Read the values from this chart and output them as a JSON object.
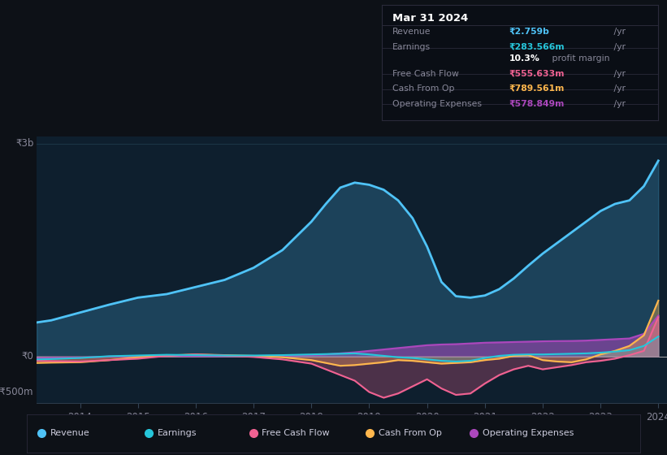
{
  "background_color": "#0d1117",
  "plot_bg_color": "#0e1f2e",
  "title": "Mar 31 2024",
  "years": [
    2013.25,
    2013.5,
    2014,
    2014.5,
    2015,
    2015.5,
    2016,
    2016.5,
    2017,
    2017.5,
    2018,
    2018.25,
    2018.5,
    2018.75,
    2019,
    2019.25,
    2019.5,
    2019.75,
    2020,
    2020.25,
    2020.5,
    2020.75,
    2021,
    2021.25,
    2021.5,
    2021.75,
    2022,
    2022.25,
    2022.5,
    2022.75,
    2023,
    2023.25,
    2023.5,
    2023.75,
    2024
  ],
  "revenue": [
    480,
    510,
    620,
    730,
    830,
    880,
    980,
    1080,
    1250,
    1500,
    1900,
    2150,
    2380,
    2450,
    2420,
    2350,
    2200,
    1950,
    1550,
    1050,
    850,
    830,
    860,
    950,
    1100,
    1280,
    1450,
    1600,
    1750,
    1900,
    2050,
    2150,
    2200,
    2400,
    2759
  ],
  "earnings": [
    -40,
    -35,
    -20,
    5,
    15,
    25,
    20,
    15,
    15,
    20,
    30,
    35,
    40,
    45,
    30,
    10,
    -10,
    -20,
    -40,
    -60,
    -70,
    -60,
    -20,
    10,
    25,
    30,
    30,
    35,
    40,
    45,
    55,
    70,
    90,
    150,
    283
  ],
  "free_cash_flow": [
    -60,
    -65,
    -70,
    -50,
    -30,
    10,
    30,
    15,
    -5,
    -40,
    -100,
    -180,
    -260,
    -340,
    -500,
    -580,
    -520,
    -420,
    -320,
    -450,
    -540,
    -520,
    -380,
    -260,
    -180,
    -130,
    -180,
    -150,
    -120,
    -80,
    -60,
    -30,
    20,
    80,
    555
  ],
  "cash_from_op": [
    -90,
    -85,
    -80,
    -50,
    -10,
    15,
    30,
    20,
    10,
    -10,
    -50,
    -90,
    -130,
    -120,
    -100,
    -80,
    -50,
    -60,
    -80,
    -100,
    -90,
    -80,
    -50,
    -30,
    10,
    20,
    -50,
    -70,
    -80,
    -40,
    30,
    80,
    150,
    300,
    789
  ],
  "operating_expenses": [
    -25,
    -20,
    -15,
    0,
    5,
    10,
    8,
    5,
    8,
    12,
    20,
    30,
    45,
    60,
    80,
    100,
    120,
    140,
    160,
    170,
    175,
    185,
    195,
    200,
    205,
    210,
    215,
    218,
    220,
    225,
    235,
    245,
    255,
    320,
    578
  ],
  "ylim": [
    -650,
    3100
  ],
  "colors": {
    "revenue": "#4fc3f7",
    "earnings": "#26c6da",
    "free_cash_flow": "#f06292",
    "cash_from_op": "#ffb74d",
    "operating_expenses": "#ab47bc"
  },
  "table_data": {
    "Revenue": {
      "value": "₹2.759b",
      "unit": "/yr",
      "color": "#4fc3f7"
    },
    "Earnings": {
      "value": "₹283.566m",
      "unit": "/yr",
      "color": "#26c6da"
    },
    "Free Cash Flow": {
      "value": "₹555.633m",
      "unit": "/yr",
      "color": "#f06292"
    },
    "Cash From Op": {
      "value": "₹789.561m",
      "unit": "/yr",
      "color": "#ffb74d"
    },
    "Operating Expenses": {
      "value": "₹578.849m",
      "unit": "/yr",
      "color": "#ab47bc"
    }
  },
  "grid_color": "#1e3a4a",
  "zero_line_color": "#aaaaaa",
  "text_color": "#888899",
  "bright_text": "#ccccdd",
  "table_bg": "#0a0e15",
  "table_border": "#2a2a3a"
}
